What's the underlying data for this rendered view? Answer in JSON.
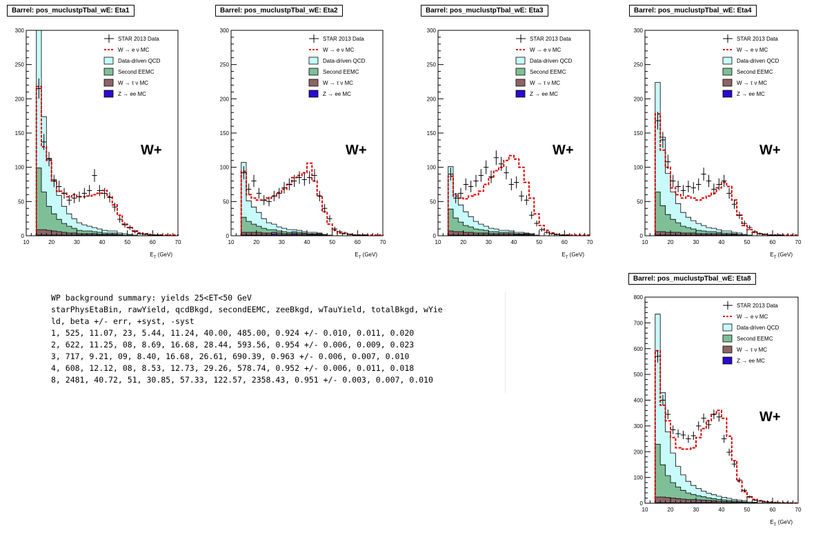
{
  "panels": [
    {
      "id": "eta1",
      "title": "Barrel: pos_muclustpTbal_wE: Eta1",
      "label": "W+",
      "xlabel": "E_T (GeV)",
      "ylim": [
        0,
        300
      ],
      "yticks": [
        0,
        50,
        100,
        150,
        200,
        250,
        300
      ],
      "xlim": [
        10,
        70
      ],
      "xticks": [
        10,
        20,
        30,
        40,
        50,
        60,
        70
      ],
      "chart_data": {
        "type": "histogram-stack",
        "bin_start": 14,
        "bin_width": 2,
        "data": [
          215,
          137,
          112,
          80,
          72,
          62,
          52,
          55,
          57,
          62,
          66,
          88,
          66,
          62,
          56,
          42,
          24,
          16,
          12,
          6,
          3,
          2,
          1,
          1,
          1,
          0,
          0,
          0
        ],
        "w_mc": [
          218,
          130,
          110,
          80,
          65,
          62,
          57,
          60,
          57,
          57,
          58,
          60,
          62,
          66,
          57,
          45,
          30,
          17,
          12,
          7,
          4,
          3,
          2,
          1,
          1,
          1,
          1,
          1
        ],
        "qcd": [
          205,
          110,
          70,
          50,
          35,
          25,
          18,
          14,
          11,
          9,
          7,
          6,
          5,
          4,
          3,
          3,
          2,
          2,
          1,
          1,
          0,
          0,
          0,
          0,
          0,
          0,
          0,
          0
        ],
        "second_eemc": [
          90,
          55,
          35,
          25,
          18,
          13,
          10,
          7,
          5,
          4,
          4,
          3,
          3,
          2,
          2,
          2,
          1,
          1,
          1,
          0,
          0,
          0,
          0,
          0,
          0,
          0,
          0,
          0
        ],
        "w_tau": [
          8,
          8,
          7,
          6,
          5,
          4,
          3,
          3,
          2,
          2,
          2,
          2,
          1,
          1,
          1,
          1,
          1,
          0,
          0,
          0,
          0,
          0,
          0,
          0,
          0,
          0,
          0,
          0
        ],
        "z_ee": [
          1,
          1,
          1,
          1,
          1,
          1,
          1,
          1,
          1,
          1,
          1,
          1,
          1,
          1,
          1,
          1,
          0,
          0,
          0,
          0,
          0,
          0,
          0,
          0,
          0,
          0,
          0,
          0
        ]
      }
    },
    {
      "id": "eta2",
      "title": "Barrel: pos_muclustpTbal_wE: Eta2",
      "label": "W+",
      "xlabel": "E_T (GeV)",
      "ylim": [
        0,
        300
      ],
      "yticks": [
        0,
        50,
        100,
        150,
        200,
        250,
        300
      ],
      "xlim": [
        10,
        70
      ],
      "xticks": [
        10,
        20,
        30,
        40,
        50,
        60,
        70
      ],
      "chart_data": {
        "type": "histogram-stack",
        "bin_start": 14,
        "bin_width": 2,
        "data": [
          92,
          68,
          80,
          62,
          52,
          50,
          58,
          62,
          70,
          75,
          80,
          85,
          82,
          85,
          88,
          58,
          40,
          25,
          10,
          6,
          4,
          2,
          1,
          1,
          1,
          0,
          0,
          0
        ],
        "w_mc": [
          94,
          60,
          55,
          52,
          52,
          55,
          58,
          63,
          68,
          75,
          85,
          88,
          92,
          106,
          80,
          58,
          35,
          17,
          8,
          4,
          3,
          2,
          1,
          1,
          1,
          1,
          1,
          1
        ],
        "qcd": [
          80,
          30,
          25,
          20,
          14,
          10,
          8,
          6,
          5,
          4,
          3,
          3,
          2,
          2,
          2,
          1,
          1,
          1,
          0,
          0,
          0,
          0,
          0,
          0,
          0,
          0,
          0,
          0
        ],
        "second_eemc": [
          22,
          16,
          12,
          9,
          7,
          5,
          4,
          3,
          3,
          2,
          2,
          2,
          1,
          1,
          1,
          1,
          0,
          0,
          0,
          0,
          0,
          0,
          0,
          0,
          0,
          0,
          0,
          0
        ],
        "w_tau": [
          4,
          4,
          4,
          4,
          3,
          3,
          3,
          3,
          2,
          2,
          2,
          2,
          2,
          1,
          1,
          1,
          1,
          0,
          0,
          0,
          0,
          0,
          0,
          0,
          0,
          0,
          0,
          0
        ],
        "z_ee": [
          1,
          1,
          1,
          1,
          1,
          1,
          2,
          1,
          1,
          1,
          2,
          1,
          1,
          1,
          1,
          1,
          0,
          0,
          0,
          0,
          0,
          0,
          0,
          0,
          0,
          0,
          0,
          0
        ]
      }
    },
    {
      "id": "eta3",
      "title": "Barrel: pos_muclustpTbal_wE: Eta3",
      "label": "W+",
      "xlabel": "E_T (GeV)",
      "ylim": [
        0,
        300
      ],
      "yticks": [
        0,
        50,
        100,
        150,
        200,
        250,
        300
      ],
      "xlim": [
        10,
        70
      ],
      "xticks": [
        10,
        20,
        30,
        40,
        50,
        60,
        70
      ],
      "chart_data": {
        "type": "histogram-stack",
        "bin_start": 14,
        "bin_width": 2,
        "data": [
          90,
          55,
          62,
          75,
          72,
          80,
          88,
          100,
          86,
          114,
          105,
          92,
          75,
          78,
          58,
          52,
          30,
          18,
          9,
          5,
          3,
          2,
          1,
          1,
          0,
          0,
          0,
          0
        ],
        "w_mc": [
          87,
          58,
          55,
          54,
          58,
          60,
          65,
          75,
          85,
          95,
          100,
          110,
          117,
          112,
          100,
          78,
          55,
          32,
          15,
          8,
          4,
          2,
          1,
          1,
          1,
          1,
          1,
          1
        ],
        "qcd": [
          62,
          35,
          25,
          20,
          15,
          11,
          8,
          6,
          5,
          4,
          3,
          3,
          2,
          2,
          2,
          1,
          1,
          1,
          0,
          0,
          0,
          0,
          0,
          0,
          0,
          0,
          0,
          0
        ],
        "second_eemc": [
          32,
          20,
          14,
          10,
          8,
          6,
          5,
          4,
          3,
          3,
          2,
          2,
          2,
          1,
          1,
          1,
          1,
          0,
          0,
          0,
          0,
          0,
          0,
          0,
          0,
          0,
          0,
          0
        ],
        "w_tau": [
          6,
          5,
          5,
          4,
          4,
          3,
          3,
          3,
          2,
          2,
          2,
          2,
          2,
          1,
          1,
          1,
          1,
          0,
          0,
          0,
          0,
          0,
          0,
          0,
          0,
          0,
          0,
          0
        ],
        "z_ee": [
          1,
          1,
          1,
          1,
          1,
          1,
          1,
          1,
          1,
          1,
          1,
          1,
          1,
          1,
          1,
          1,
          0,
          0,
          0,
          0,
          0,
          0,
          0,
          0,
          0,
          0,
          0,
          0
        ]
      }
    },
    {
      "id": "eta4",
      "title": "Barrel: pos_muclustpTbal_wE: Eta4",
      "label": "W+",
      "xlabel": "E_T (GeV)",
      "ylim": [
        0,
        300
      ],
      "yticks": [
        0,
        50,
        100,
        150,
        200,
        250,
        300
      ],
      "xlim": [
        10,
        70
      ],
      "xticks": [
        10,
        20,
        30,
        40,
        50,
        60,
        70
      ],
      "chart_data": {
        "type": "histogram-stack",
        "bin_start": 14,
        "bin_width": 2,
        "data": [
          168,
          140,
          108,
          80,
          72,
          66,
          72,
          70,
          75,
          90,
          80,
          68,
          75,
          80,
          62,
          46,
          30,
          18,
          12,
          6,
          3,
          2,
          1,
          1,
          1,
          0,
          0,
          0
        ],
        "w_mc": [
          178,
          125,
          100,
          70,
          60,
          55,
          58,
          55,
          52,
          55,
          58,
          62,
          70,
          78,
          72,
          52,
          30,
          15,
          9,
          5,
          3,
          2,
          1,
          1,
          1,
          1,
          1,
          1
        ],
        "qcd": [
          160,
          100,
          60,
          40,
          28,
          20,
          15,
          12,
          10,
          8,
          6,
          5,
          4,
          3,
          3,
          2,
          2,
          1,
          1,
          0,
          0,
          0,
          0,
          0,
          0,
          0,
          0,
          0
        ],
        "second_eemc": [
          58,
          38,
          26,
          19,
          14,
          10,
          8,
          6,
          5,
          4,
          3,
          3,
          2,
          2,
          2,
          1,
          1,
          1,
          0,
          0,
          0,
          0,
          0,
          0,
          0,
          0,
          0,
          0
        ],
        "w_tau": [
          5,
          5,
          4,
          4,
          4,
          3,
          3,
          3,
          2,
          2,
          2,
          2,
          2,
          1,
          1,
          1,
          1,
          0,
          0,
          0,
          0,
          0,
          0,
          0,
          0,
          0,
          0,
          0
        ],
        "z_ee": [
          1,
          1,
          1,
          1,
          1,
          1,
          1,
          1,
          1,
          1,
          1,
          1,
          1,
          1,
          1,
          1,
          0,
          0,
          0,
          0,
          0,
          0,
          0,
          0,
          0,
          0,
          0,
          0
        ]
      }
    },
    {
      "id": "eta8",
      "title": "Barrel: pos_muclustpTbal_wE: Eta8",
      "label": "W+",
      "xlabel": "E_T (GeV)",
      "ylim": [
        0,
        800
      ],
      "yticks": [
        0,
        100,
        200,
        300,
        400,
        500,
        600,
        700,
        800
      ],
      "xlim": [
        10,
        70
      ],
      "xticks": [
        10,
        20,
        30,
        40,
        50,
        60,
        70
      ],
      "chart_data": {
        "type": "histogram-stack",
        "bin_start": 14,
        "bin_width": 2,
        "data": [
          570,
          400,
          345,
          285,
          270,
          265,
          250,
          262,
          300,
          330,
          305,
          345,
          335,
          250,
          198,
          152,
          90,
          50,
          25,
          12,
          8,
          5,
          3,
          2,
          1,
          1,
          1,
          0
        ],
        "w_mc": [
          592,
          380,
          320,
          255,
          215,
          210,
          210,
          215,
          255,
          290,
          320,
          345,
          360,
          330,
          260,
          165,
          85,
          45,
          25,
          15,
          10,
          7,
          5,
          3,
          2,
          2,
          1,
          1
        ],
        "qcd": [
          505,
          280,
          170,
          115,
          80,
          60,
          45,
          35,
          28,
          22,
          18,
          15,
          12,
          10,
          8,
          6,
          5,
          4,
          3,
          2,
          1,
          1,
          0,
          0,
          0,
          0,
          0,
          0
        ],
        "second_eemc": [
          205,
          125,
          85,
          60,
          45,
          34,
          26,
          20,
          16,
          13,
          10,
          8,
          7,
          6,
          5,
          4,
          3,
          2,
          1,
          1,
          0,
          0,
          0,
          0,
          0,
          0,
          0,
          0
        ],
        "w_tau": [
          22,
          22,
          20,
          18,
          16,
          14,
          12,
          11,
          10,
          9,
          8,
          7,
          6,
          5,
          4,
          3,
          3,
          2,
          1,
          1,
          0,
          0,
          0,
          0,
          0,
          0,
          0,
          0
        ],
        "z_ee": [
          2,
          2,
          2,
          2,
          2,
          2,
          2,
          3,
          3,
          3,
          3,
          3,
          2,
          2,
          2,
          2,
          1,
          1,
          0,
          0,
          0,
          0,
          0,
          0,
          0,
          0,
          0,
          0
        ]
      }
    }
  ],
  "legend": [
    {
      "key": "data",
      "label": "STAR 2013 Data",
      "color": "#000000",
      "style": "errorbar"
    },
    {
      "key": "w_mc",
      "label": "W  → e  ν MC",
      "color": "#dd0000",
      "style": "dashed"
    },
    {
      "key": "qcd",
      "label": "Data-driven QCD",
      "color": "#c8fafa",
      "style": "fill"
    },
    {
      "key": "second_eemc",
      "label": "Second EEMC",
      "color": "#7fbf98",
      "style": "fill"
    },
    {
      "key": "w_tau",
      "label": "W  → τ ν MC",
      "color": "#8c6464",
      "style": "fill"
    },
    {
      "key": "z_ee",
      "label": "Z  → ee MC",
      "color": "#2a0bcc",
      "style": "fill"
    }
  ],
  "summary": {
    "lines": [
      "WP background summary: yields 25<ET<50 GeV",
      "starPhysEtaBin, rawYield, qcdBkgd, secondEEMC, zeeBkgd, wTauYield, totalBkgd, wYie",
      "ld, beta +/- err, +syst, -syst",
      "1, 525, 11.07, 23, 5.44, 11.24, 40.00, 485.00, 0.924 +/- 0.010, 0.011, 0.020",
      "2, 622, 11.25, 08, 8.69, 16.68, 28.44, 593.56, 0.954 +/- 0.006, 0.009, 0.023",
      "3, 717, 9.21, 09, 8.40, 16.68, 26.61, 690.39, 0.963 +/- 0.006, 0.007, 0.010",
      "4, 608, 12.12, 08, 8.53, 12.73, 29.26, 578.74, 0.952 +/- 0.006, 0.011, 0.018",
      "8, 2481, 40.72, 51, 30.85, 57.33, 122.57, 2358.43, 0.951 +/- 0.003, 0.007, 0.010"
    ]
  }
}
